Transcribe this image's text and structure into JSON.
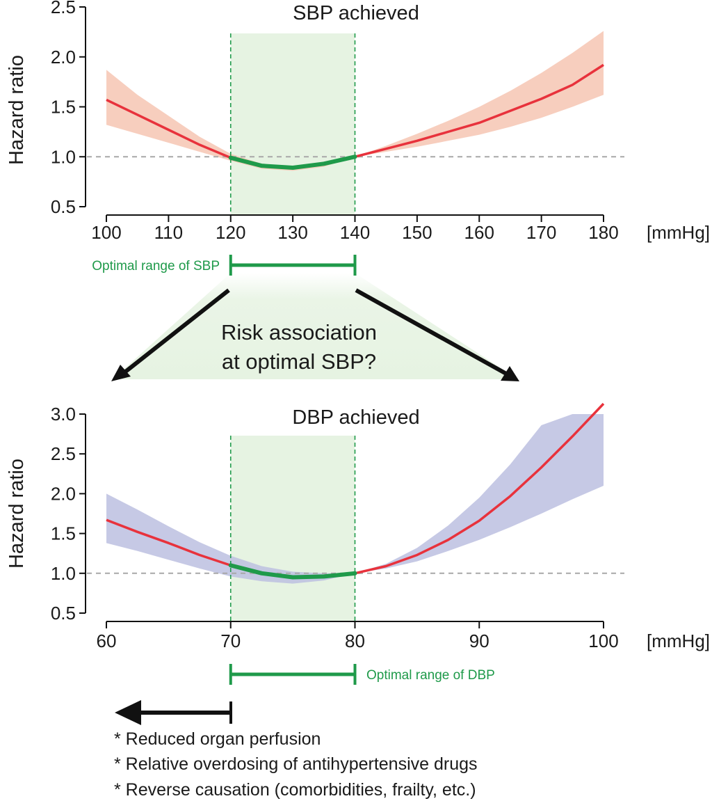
{
  "chart_data": [
    {
      "type": "line",
      "title": "SBP achieved",
      "ylabel": "Hazard ratio",
      "xunit": "[mmHg]",
      "xlim": [
        100,
        180
      ],
      "ylim": [
        0.5,
        2.5
      ],
      "xticks": [
        100,
        110,
        120,
        130,
        140,
        150,
        160,
        170,
        180
      ],
      "yticks": [
        "0.5",
        "1.0",
        "1.5",
        "2.0",
        "2.5"
      ],
      "reference_line": 1.0,
      "optimal_range": [
        120,
        140
      ],
      "optimal_label": "Optimal range of SBP",
      "series": [
        {
          "x": [
            100,
            105,
            110,
            115,
            120,
            125,
            130,
            135,
            140,
            145,
            150,
            155,
            160,
            165,
            170,
            175,
            180
          ],
          "y": [
            1.57,
            1.42,
            1.27,
            1.12,
            0.99,
            0.91,
            0.89,
            0.93,
            1.0,
            1.08,
            1.16,
            1.25,
            1.34,
            1.46,
            1.58,
            1.72,
            1.92
          ],
          "lower": [
            1.32,
            1.23,
            1.14,
            1.05,
            0.96,
            0.88,
            0.86,
            0.9,
            1.0,
            1.05,
            1.1,
            1.16,
            1.22,
            1.3,
            1.39,
            1.5,
            1.62
          ],
          "upper": [
            1.87,
            1.62,
            1.41,
            1.2,
            1.03,
            0.93,
            0.9,
            0.95,
            1.0,
            1.11,
            1.23,
            1.36,
            1.5,
            1.66,
            1.84,
            2.04,
            2.26
          ],
          "band_color": "#f6c6b3"
        }
      ]
    },
    {
      "type": "line",
      "title": "DBP achieved",
      "ylabel": "Hazard ratio",
      "xunit": "[mmHg]",
      "xlim": [
        60,
        100
      ],
      "ylim": [
        0.5,
        3.0
      ],
      "xticks": [
        60,
        70,
        80,
        90,
        100
      ],
      "yticks": [
        "0.5",
        "1.0",
        "1.5",
        "2.0",
        "2.5",
        "3.0"
      ],
      "reference_line": 1.0,
      "optimal_range": [
        70,
        80
      ],
      "optimal_label": "Optimal range of DBP",
      "series": [
        {
          "x": [
            60,
            62.5,
            65,
            67.5,
            70,
            72.5,
            75,
            77.5,
            80,
            82.5,
            85,
            87.5,
            90,
            92.5,
            95,
            97.5,
            100
          ],
          "y": [
            1.67,
            1.52,
            1.38,
            1.23,
            1.1,
            1.0,
            0.95,
            0.96,
            1.0,
            1.09,
            1.23,
            1.42,
            1.66,
            1.97,
            2.33,
            2.72,
            3.13
          ],
          "lower": [
            1.38,
            1.28,
            1.17,
            1.06,
            0.96,
            0.9,
            0.87,
            0.91,
            1.0,
            1.06,
            1.15,
            1.28,
            1.42,
            1.58,
            1.75,
            1.93,
            2.1
          ],
          "upper": [
            2.0,
            1.8,
            1.59,
            1.39,
            1.22,
            1.09,
            1.02,
            1.0,
            1.0,
            1.12,
            1.32,
            1.6,
            1.95,
            2.37,
            2.86,
            3.0,
            3.0
          ],
          "band_color": "#bcbfe0"
        }
      ]
    }
  ],
  "colors": {
    "curve": "#e8323c",
    "optimal_curve": "#1f9a4a",
    "optimal_shade": "#e6f3e2",
    "optimal_dash": "#1f9a4a",
    "reference_dash": "#a8a8a8",
    "arrow": "#111111"
  },
  "question": {
    "line1": "Risk association",
    "line2": "at optimal SBP?"
  },
  "notes": [
    "* Reduced organ perfusion",
    "* Relative overdosing of antihypertensive drugs",
    "* Reverse causation (comorbidities, frailty, etc.)"
  ]
}
